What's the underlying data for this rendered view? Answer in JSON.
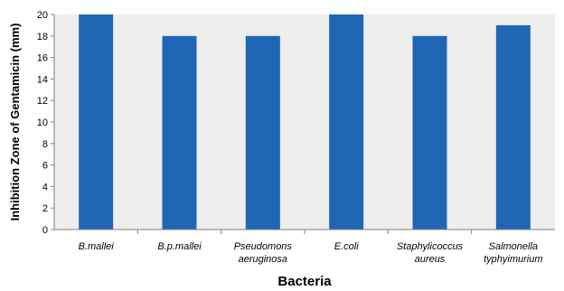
{
  "chart_data": {
    "type": "bar",
    "categories": [
      [
        "B.mallei"
      ],
      [
        "B.p.mallei"
      ],
      [
        "Pseudomons",
        "aeruginosa"
      ],
      [
        "E.coli"
      ],
      [
        "Staphylicoccus",
        "aureus"
      ],
      [
        "Salmonella",
        "typhyimurium"
      ]
    ],
    "values": [
      20,
      18,
      18,
      20,
      18,
      19
    ],
    "xlabel": "Bacteria",
    "ylabel": "Inhibition Zone of Gentamicin (mm)",
    "ylim": [
      0,
      20
    ],
    "ytick_step": 2,
    "grid": false,
    "legend": "none",
    "colors": {
      "bar": "#1f67b4",
      "plot_bg": "#eeeeee",
      "axis": "#7f7f7f"
    }
  }
}
